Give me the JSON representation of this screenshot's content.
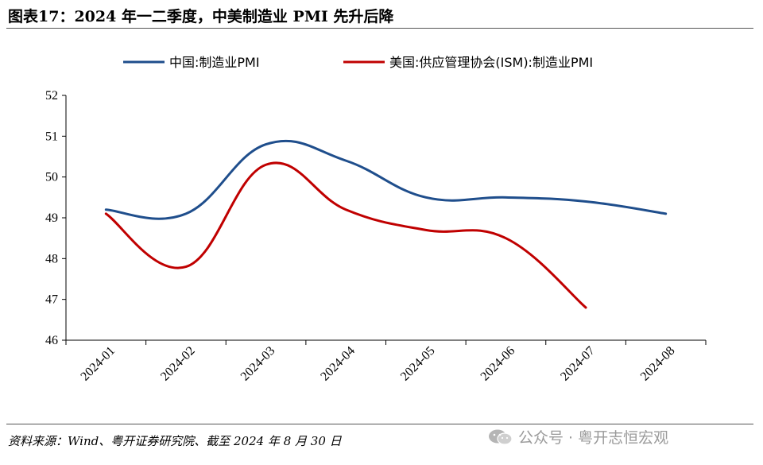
{
  "title": "图表17：2024 年一二季度，中美制造业 PMI 先升后降",
  "source": "资料来源：Wind、粤开证券研究院、截至 2024 年 8 月 30 日",
  "watermark": "公众号 · 粤开志恒宏观",
  "colors": {
    "china": "#1f4e8c",
    "us": "#c00000"
  },
  "chart_data": {
    "type": "line",
    "title": "2024 年一二季度，中美制造业 PMI 先升后降",
    "xlabel": "",
    "ylabel": "",
    "ylim": [
      46,
      52
    ],
    "yticks": [
      46,
      47,
      48,
      49,
      50,
      51,
      52
    ],
    "categories": [
      "2024-01",
      "2024-02",
      "2024-03",
      "2024-04",
      "2024-05",
      "2024-06",
      "2024-07",
      "2024-08"
    ],
    "legend_position": "top",
    "series": [
      {
        "name": "中国:制造业PMI",
        "color": "#1f4e8c",
        "values": [
          49.2,
          49.1,
          50.8,
          50.4,
          49.5,
          49.5,
          49.4,
          49.1
        ]
      },
      {
        "name": "美国:供应管理协会(ISM):制造业PMI",
        "color": "#c00000",
        "values": [
          49.1,
          47.8,
          50.3,
          49.2,
          48.7,
          48.5,
          46.8,
          null
        ]
      }
    ]
  }
}
